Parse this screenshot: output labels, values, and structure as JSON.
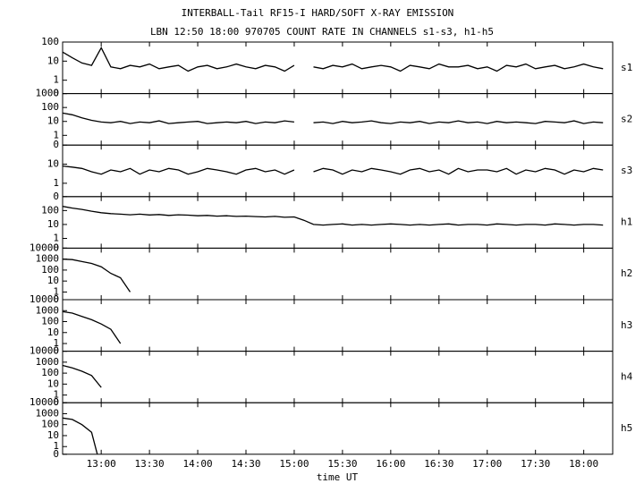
{
  "chart_data": [
    {
      "type": "line",
      "title": "INTERBALL-Tail RF15-I HARD/SOFT X-RAY EMISSION",
      "subtitle": "LBN 12:50 18:00 970705  COUNT RATE IN CHANNELS s1-s3, h1-h5",
      "label": "s1",
      "yscale": "log",
      "xlim": [
        12.6,
        18.3
      ],
      "ylim": [
        0,
        100
      ],
      "yticks": [
        0,
        1,
        10,
        100
      ],
      "x": [
        12.6,
        12.7,
        12.8,
        12.9,
        13.0,
        13.1,
        13.2,
        13.3,
        13.4,
        13.5,
        13.6,
        13.7,
        13.8,
        13.9,
        14.0,
        14.1,
        14.2,
        14.3,
        14.4,
        14.5,
        14.6,
        14.7,
        14.8,
        14.9,
        15.0,
        15.1,
        15.2,
        15.3,
        15.4,
        15.5,
        15.6,
        15.7,
        15.8,
        15.9,
        16.0,
        16.1,
        16.2,
        16.3,
        16.4,
        16.5,
        16.6,
        16.7,
        16.8,
        16.9,
        17.0,
        17.1,
        17.2,
        17.3,
        17.4,
        17.5,
        17.6,
        17.7,
        17.8,
        17.9,
        18.0,
        18.1,
        18.2
      ],
      "values": [
        30,
        15,
        8,
        6,
        50,
        5,
        4,
        6,
        5,
        7,
        4,
        5,
        6,
        3,
        5,
        6,
        4,
        5,
        7,
        5,
        4,
        6,
        5,
        3,
        6,
        null,
        5,
        4,
        6,
        5,
        7,
        4,
        5,
        6,
        5,
        3,
        6,
        5,
        4,
        7,
        5,
        5,
        6,
        4,
        5,
        3,
        6,
        5,
        7,
        4,
        5,
        6,
        4,
        5,
        7,
        5,
        4
      ]
    },
    {
      "type": "line",
      "label": "s2",
      "yscale": "log",
      "xlim": [
        12.6,
        18.3
      ],
      "ylim": [
        0,
        1000
      ],
      "yticks": [
        0,
        1,
        10,
        100,
        1000
      ],
      "x": [
        12.6,
        12.7,
        12.8,
        12.9,
        13.0,
        13.1,
        13.2,
        13.3,
        13.4,
        13.5,
        13.6,
        13.7,
        13.8,
        13.9,
        14.0,
        14.1,
        14.2,
        14.3,
        14.4,
        14.5,
        14.6,
        14.7,
        14.8,
        14.9,
        15.0,
        15.1,
        15.2,
        15.3,
        15.4,
        15.5,
        15.6,
        15.7,
        15.8,
        15.9,
        16.0,
        16.1,
        16.2,
        16.3,
        16.4,
        16.5,
        16.6,
        16.7,
        16.8,
        16.9,
        17.0,
        17.1,
        17.2,
        17.3,
        17.4,
        17.5,
        17.6,
        17.7,
        17.8,
        17.9,
        18.0,
        18.1,
        18.2
      ],
      "values": [
        40,
        30,
        18,
        12,
        9,
        8,
        10,
        7,
        9,
        8,
        11,
        7,
        8,
        9,
        10,
        7,
        8,
        9,
        8,
        10,
        7,
        9,
        8,
        11,
        9,
        null,
        8,
        9,
        7,
        10,
        8,
        9,
        11,
        8,
        7,
        9,
        8,
        10,
        7,
        9,
        8,
        11,
        8,
        9,
        7,
        10,
        8,
        9,
        8,
        7,
        10,
        9,
        8,
        11,
        7,
        9,
        8
      ]
    },
    {
      "type": "line",
      "label": "s3",
      "yscale": "log",
      "xlim": [
        12.6,
        18.3
      ],
      "ylim": [
        0,
        100
      ],
      "yticks": [
        0,
        1,
        10
      ],
      "x": [
        12.6,
        12.7,
        12.8,
        12.9,
        13.0,
        13.1,
        13.2,
        13.3,
        13.4,
        13.5,
        13.6,
        13.7,
        13.8,
        13.9,
        14.0,
        14.1,
        14.2,
        14.3,
        14.4,
        14.5,
        14.6,
        14.7,
        14.8,
        14.9,
        15.0,
        15.1,
        15.2,
        15.3,
        15.4,
        15.5,
        15.6,
        15.7,
        15.8,
        15.9,
        16.0,
        16.1,
        16.2,
        16.3,
        16.4,
        16.5,
        16.6,
        16.7,
        16.8,
        16.9,
        17.0,
        17.1,
        17.2,
        17.3,
        17.4,
        17.5,
        17.6,
        17.7,
        17.8,
        17.9,
        18.0,
        18.1,
        18.2
      ],
      "values": [
        8,
        7,
        6,
        4,
        3,
        5,
        4,
        6,
        3,
        5,
        4,
        6,
        5,
        3,
        4,
        6,
        5,
        4,
        3,
        5,
        6,
        4,
        5,
        3,
        5,
        null,
        4,
        6,
        5,
        3,
        5,
        4,
        6,
        5,
        4,
        3,
        5,
        6,
        4,
        5,
        3,
        6,
        4,
        5,
        5,
        4,
        6,
        3,
        5,
        4,
        6,
        5,
        3,
        5,
        4,
        6,
        5
      ]
    },
    {
      "type": "line",
      "label": "h1",
      "yscale": "log",
      "xlim": [
        12.6,
        18.3
      ],
      "ylim": [
        0,
        1000
      ],
      "yticks": [
        0,
        1,
        10,
        100
      ],
      "x": [
        12.6,
        12.7,
        12.8,
        12.9,
        13.0,
        13.1,
        13.2,
        13.3,
        13.4,
        13.5,
        13.6,
        13.7,
        13.8,
        13.9,
        14.0,
        14.1,
        14.2,
        14.3,
        14.4,
        14.5,
        14.6,
        14.7,
        14.8,
        14.9,
        15.0,
        15.1,
        15.2,
        15.3,
        15.4,
        15.5,
        15.6,
        15.7,
        15.8,
        15.9,
        16.0,
        16.1,
        16.2,
        16.3,
        16.4,
        16.5,
        16.6,
        16.7,
        16.8,
        16.9,
        17.0,
        17.1,
        17.2,
        17.3,
        17.4,
        17.5,
        17.6,
        17.7,
        17.8,
        17.9,
        18.0,
        18.1,
        18.2
      ],
      "values": [
        200,
        150,
        120,
        90,
        70,
        60,
        55,
        50,
        55,
        48,
        52,
        45,
        50,
        47,
        42,
        45,
        40,
        42,
        38,
        40,
        37,
        35,
        38,
        33,
        35,
        20,
        10,
        9,
        10,
        11,
        9,
        10,
        9,
        10,
        11,
        10,
        9,
        10,
        9,
        10,
        11,
        9,
        10,
        10,
        9,
        11,
        10,
        9,
        10,
        10,
        9,
        11,
        10,
        9,
        10,
        10,
        9
      ]
    },
    {
      "type": "line",
      "label": "h2",
      "yscale": "log",
      "xlim": [
        12.6,
        18.3
      ],
      "ylim": [
        0,
        10000
      ],
      "yticks": [
        0,
        1,
        10,
        100,
        1000,
        10000
      ],
      "x": [
        12.6,
        12.7,
        12.8,
        12.9,
        13.0,
        13.1,
        13.2,
        13.3
      ],
      "values": [
        1000,
        900,
        600,
        400,
        200,
        50,
        20,
        1
      ]
    },
    {
      "type": "line",
      "label": "h3",
      "yscale": "log",
      "xlim": [
        12.6,
        18.3
      ],
      "ylim": [
        0,
        10000
      ],
      "yticks": [
        0,
        1,
        10,
        100,
        1000,
        10000
      ],
      "x": [
        12.6,
        12.7,
        12.8,
        12.9,
        13.0,
        13.1,
        13.2
      ],
      "values": [
        800,
        600,
        300,
        150,
        60,
        20,
        1
      ]
    },
    {
      "type": "line",
      "label": "h4",
      "yscale": "log",
      "xlim": [
        12.6,
        18.3
      ],
      "ylim": [
        0,
        10000
      ],
      "yticks": [
        0,
        1,
        10,
        100,
        1000,
        10000
      ],
      "x": [
        12.6,
        12.7,
        12.8,
        12.9,
        13.0
      ],
      "values": [
        500,
        300,
        150,
        60,
        5
      ]
    },
    {
      "type": "line",
      "label": "h5",
      "yscale": "log",
      "xlim": [
        12.6,
        18.3
      ],
      "ylim": [
        0,
        10000
      ],
      "yticks": [
        0,
        1,
        10,
        100,
        1000,
        10000
      ],
      "x": [
        12.6,
        12.7,
        12.8,
        12.9,
        12.96
      ],
      "values": [
        400,
        300,
        100,
        20,
        0
      ],
      "x_label": "time UT",
      "xticks": [
        {
          "value": 13,
          "label": "13:00"
        },
        {
          "value": 13.5,
          "label": "13:30"
        },
        {
          "value": 14,
          "label": "14:00"
        },
        {
          "value": 14.5,
          "label": "14:30"
        },
        {
          "value": 15,
          "label": "15:00"
        },
        {
          "value": 15.5,
          "label": "15:30"
        },
        {
          "value": 16,
          "label": "16:00"
        },
        {
          "value": 16.5,
          "label": "16:30"
        },
        {
          "value": 17,
          "label": "17:00"
        },
        {
          "value": 17.5,
          "label": "17:30"
        },
        {
          "value": 18,
          "label": "18:00"
        }
      ]
    }
  ]
}
